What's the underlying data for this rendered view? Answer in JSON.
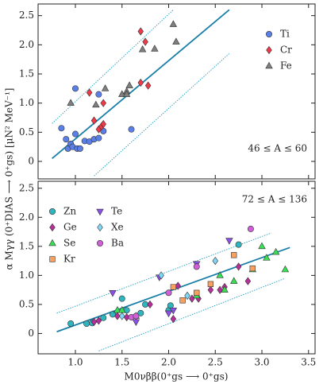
{
  "chart_data": [
    {
      "type": "scatter",
      "annotation": "46 ≤ A ≤ 60",
      "ylabel": "α Mγγ (0⁺DIAS ⟶ 0⁺gs) [μN² MeV⁻¹]",
      "xlim": [
        0.6,
        3.57
      ],
      "ylim": [
        -0.3,
        2.7
      ],
      "xticks": [
        1,
        1.5,
        2,
        2.5,
        3,
        3.5
      ],
      "yticks": [
        0,
        0.5,
        {
          "value": 1,
          "label": "1.0"
        },
        {
          "value": 1.5,
          "label": "1.5"
        },
        {
          "value": 2,
          "label": "2.0"
        },
        {
          "value": 2.5,
          "label": "2.5"
        }
      ],
      "legend": "upper right",
      "legend_columns": 1,
      "fit_lines": [
        {
          "style": "solid",
          "color": "#1a7fa8",
          "x": [
            0.75,
            2.65
          ],
          "values": [
            0.05,
            2.6
          ]
        },
        {
          "style": "dotted",
          "color": "#1a9fc0",
          "x": [
            0.75,
            2.05
          ],
          "values": [
            0.65,
            2.6
          ]
        },
        {
          "style": "dotted",
          "color": "#1a9fc0",
          "x": [
            1.2,
            2.65
          ],
          "values": [
            -0.25,
            1.85
          ]
        }
      ],
      "series": [
        {
          "name": "Ti",
          "marker": "circle",
          "color": "#5b7fe8",
          "x": [
            0.85,
            0.9,
            0.92,
            0.95,
            0.97,
            1.0,
            1.02,
            1.05,
            1.0,
            1.1,
            1.15,
            1.2,
            1.25,
            1.25,
            1.3,
            1.6
          ],
          "values": [
            0.57,
            0.38,
            0.22,
            0.3,
            0.25,
            0.47,
            0.22,
            0.22,
            1.25,
            0.35,
            0.34,
            0.38,
            0.4,
            1.15,
            0.52,
            0.55
          ]
        },
        {
          "name": "Cr",
          "marker": "diamond",
          "color": "#f03a4a",
          "x": [
            1.15,
            1.2,
            1.25,
            1.28,
            1.3,
            1.3,
            1.7,
            1.75,
            1.7,
            1.78
          ],
          "values": [
            1.18,
            0.7,
            0.55,
            0.6,
            0.64,
            1.0,
            2.23,
            2.05,
            1.35,
            1.3
          ]
        },
        {
          "name": "Fe",
          "marker": "triangle",
          "color": "#7f7f7f",
          "x": [
            0.95,
            1.22,
            1.32,
            1.5,
            1.55,
            1.58,
            1.55,
            1.72,
            1.85,
            2.05,
            2.08
          ],
          "values": [
            1.0,
            0.97,
            1.25,
            1.15,
            1.2,
            1.3,
            1.15,
            1.92,
            1.93,
            2.35,
            2.05
          ]
        }
      ]
    },
    {
      "type": "scatter",
      "annotation": "72 ≤ A ≤ 136",
      "xlabel": "M0νββ(0⁺gs ⟶ 0⁺gs)",
      "xlim": [
        0.6,
        3.57
      ],
      "ylim": [
        -0.35,
        2.62
      ],
      "xticks": [
        {
          "value": 1,
          "label": "1.0"
        },
        {
          "value": 1.5,
          "label": "1.5"
        },
        {
          "value": 2,
          "label": "2.0"
        },
        {
          "value": 2.5,
          "label": "2.5"
        },
        {
          "value": 3,
          "label": "3.0"
        },
        {
          "value": 3.5,
          "label": "3.5"
        }
      ],
      "yticks": [
        0,
        0.5,
        {
          "value": 1,
          "label": "1.0"
        },
        {
          "value": 1.5,
          "label": "1.5"
        },
        {
          "value": 2,
          "label": "2.0"
        },
        {
          "value": 2.5,
          "label": "2.5"
        }
      ],
      "legend": "upper left",
      "legend_columns": 2,
      "fit_lines": [
        {
          "style": "solid",
          "color": "#1a7fa8",
          "x": [
            0.8,
            3.3
          ],
          "values": [
            0.03,
            1.48
          ]
        },
        {
          "style": "dotted",
          "color": "#1a9fc0",
          "x": [
            0.8,
            3.1
          ],
          "values": [
            0.35,
            1.73
          ]
        },
        {
          "style": "dotted",
          "color": "#1a9fc0",
          "x": [
            1.25,
            3.25
          ],
          "values": [
            -0.3,
            0.95
          ]
        }
      ],
      "series": [
        {
          "name": "Zn",
          "marker": "circle",
          "color": "#2fb5c0",
          "x": [
            0.95,
            1.12,
            1.18,
            1.3,
            1.4,
            1.5,
            1.55,
            1.7,
            1.75,
            2.0,
            2.02,
            2.75
          ],
          "values": [
            0.17,
            0.17,
            0.18,
            0.27,
            0.33,
            0.6,
            0.4,
            0.35,
            0.5,
            0.4,
            0.48,
            1.53
          ]
        },
        {
          "name": "Ge",
          "marker": "diamond",
          "color": "#b5309a",
          "x": [
            1.2,
            1.25,
            1.45,
            1.55,
            1.8,
            2.05,
            2.1,
            2.25,
            2.3,
            2.32,
            2.45,
            2.55,
            2.6,
            2.75,
            2.85
          ],
          "values": [
            0.2,
            0.22,
            0.3,
            0.28,
            0.5,
            0.25,
            0.82,
            0.6,
            0.67,
            0.6,
            0.75,
            0.75,
            0.8,
            1.15,
            0.9
          ]
        },
        {
          "name": "Se",
          "marker": "triangle",
          "color": "#39e053",
          "x": [
            1.45,
            1.5,
            1.65,
            2.3,
            2.55,
            2.6,
            2.7,
            2.9,
            3.0,
            3.05,
            3.15,
            3.25
          ],
          "values": [
            0.4,
            0.4,
            0.3,
            0.65,
            1.0,
            0.75,
            0.9,
            1.1,
            1.5,
            1.3,
            1.4,
            1.1
          ]
        },
        {
          "name": "Kr",
          "marker": "square",
          "color": "#f8a060",
          "x": [
            2.05,
            2.15,
            2.3,
            2.45,
            2.7,
            2.9
          ],
          "values": [
            0.8,
            0.57,
            0.7,
            0.85,
            1.35,
            1.12
          ]
        },
        {
          "name": "Te",
          "marker": "triangle-down",
          "color": "#8c4fe8",
          "x": [
            1.4,
            1.65,
            1.9,
            2.0,
            2.05,
            2.3,
            2.65
          ],
          "values": [
            0.7,
            0.2,
            0.97,
            0.35,
            0.4,
            1.2,
            1.6
          ]
        },
        {
          "name": "Xe",
          "marker": "diamond",
          "color": "#7fd8f8",
          "x": [
            1.5,
            1.92,
            2.5,
            2.2
          ],
          "values": [
            0.3,
            1.0,
            1.25,
            0.65
          ]
        },
        {
          "name": "Ba",
          "marker": "circle",
          "color": "#d060d8",
          "x": [
            1.6,
            1.65,
            2.0,
            2.3,
            2.88
          ],
          "values": [
            0.28,
            0.3,
            0.7,
            1.15,
            1.8
          ]
        }
      ]
    }
  ]
}
